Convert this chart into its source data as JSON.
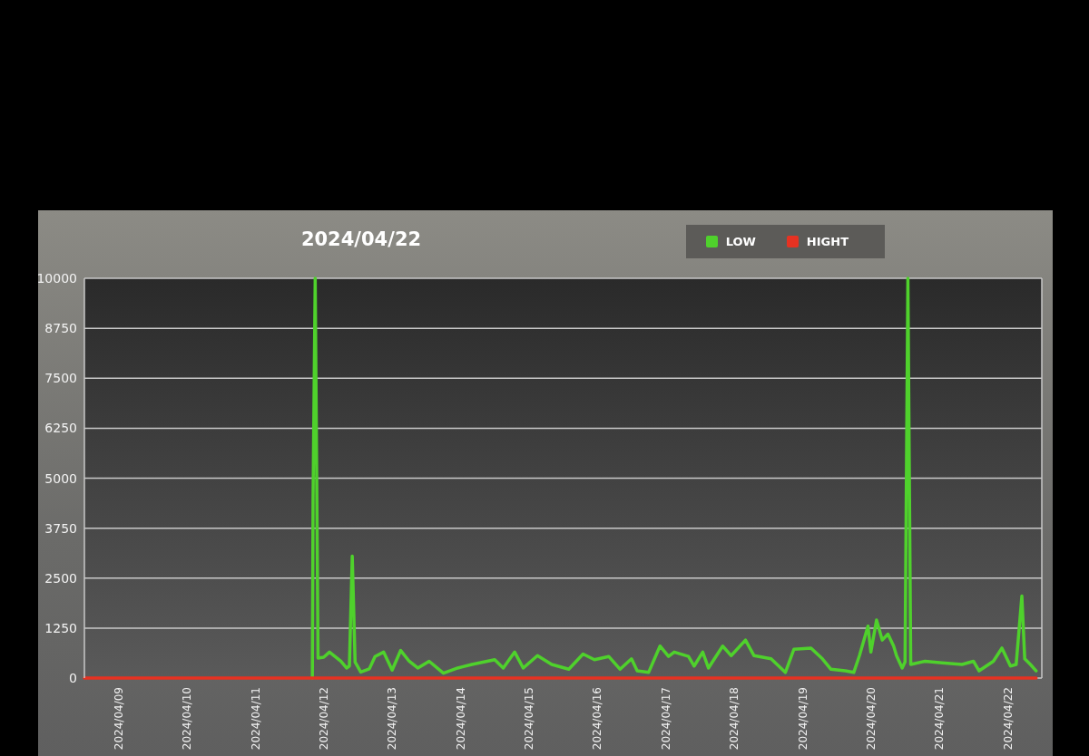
{
  "chart_data": {
    "type": "line",
    "title": "2024/04/22",
    "xlim": [
      "2024-04-08T12:00",
      "2024-04-22T12:00"
    ],
    "xticks": [
      {
        "value": "2024-04-09",
        "label": "2024/04/09"
      },
      {
        "value": "2024-04-10",
        "label": "2024/04/10"
      },
      {
        "value": "2024-04-11",
        "label": "2024/04/11"
      },
      {
        "value": "2024-04-12",
        "label": "2024/04/12"
      },
      {
        "value": "2024-04-13",
        "label": "2024/04/13"
      },
      {
        "value": "2024-04-14",
        "label": "2024/04/14"
      },
      {
        "value": "2024-04-15",
        "label": "2024/04/15"
      },
      {
        "value": "2024-04-16",
        "label": "2024/04/16"
      },
      {
        "value": "2024-04-17",
        "label": "2024/04/17"
      },
      {
        "value": "2024-04-18",
        "label": "2024/04/18"
      },
      {
        "value": "2024-04-19",
        "label": "2024/04/19"
      },
      {
        "value": "2024-04-20",
        "label": "2024/04/20"
      },
      {
        "value": "2024-04-21",
        "label": "2024/04/21"
      },
      {
        "value": "2024-04-22",
        "label": "2024/04/22"
      }
    ],
    "ylim": [
      0,
      10000
    ],
    "yticks": [
      0,
      1250,
      2500,
      3750,
      5000,
      6250,
      7500,
      8750,
      10000
    ],
    "grid": "y",
    "legend": "top right",
    "series": [
      {
        "name": "LOW",
        "color": "#4fd12c",
        "x": [
          "2024-04-11T20:00",
          "2024-04-11T20:15",
          "2024-04-11T21:00",
          "2024-04-11T22:00",
          "2024-04-12T00:00",
          "2024-04-12T02:00",
          "2024-04-12T06:00",
          "2024-04-12T08:00",
          "2024-04-12T09:00",
          "2024-04-12T10:00",
          "2024-04-12T11:00",
          "2024-04-12T13:00",
          "2024-04-12T16:00",
          "2024-04-12T18:00",
          "2024-04-12T21:00",
          "2024-04-13T00:00",
          "2024-04-13T03:00",
          "2024-04-13T06:00",
          "2024-04-13T09:00",
          "2024-04-13T13:00",
          "2024-04-13T18:00",
          "2024-04-13T23:00",
          "2024-04-14T04:00",
          "2024-04-14T12:00",
          "2024-04-14T15:00",
          "2024-04-14T19:00",
          "2024-04-14T22:00",
          "2024-04-15T03:00",
          "2024-04-15T08:00",
          "2024-04-15T14:00",
          "2024-04-15T19:00",
          "2024-04-15T23:00",
          "2024-04-16T04:00",
          "2024-04-16T08:00",
          "2024-04-16T12:00",
          "2024-04-16T14:00",
          "2024-04-16T18:00",
          "2024-04-16T22:00",
          "2024-04-17T01:00",
          "2024-04-17T03:00",
          "2024-04-17T08:00",
          "2024-04-17T10:00",
          "2024-04-17T13:00",
          "2024-04-17T15:00",
          "2024-04-17T20:00",
          "2024-04-17T23:00",
          "2024-04-18T04:00",
          "2024-04-18T07:00",
          "2024-04-18T13:00",
          "2024-04-18T18:00",
          "2024-04-18T21:00",
          "2024-04-19T03:00",
          "2024-04-19T07:00",
          "2024-04-19T10:00",
          "2024-04-19T15:00",
          "2024-04-19T18:00",
          "2024-04-19T20:00",
          "2024-04-19T23:00",
          "2024-04-20T00:00",
          "2024-04-20T02:00",
          "2024-04-20T04:00",
          "2024-04-20T06:00",
          "2024-04-20T08:00",
          "2024-04-20T09:00",
          "2024-04-20T11:00",
          "2024-04-20T12:00",
          "2024-04-20T13:00",
          "2024-04-20T14:00",
          "2024-04-20T19:00",
          "2024-04-21T01:00",
          "2024-04-21T08:00",
          "2024-04-21T12:00",
          "2024-04-21T14:00",
          "2024-04-21T19:00",
          "2024-04-21T22:00",
          "2024-04-22T01:00",
          "2024-04-22T03:00",
          "2024-04-22T05:00",
          "2024-04-22T06:00",
          "2024-04-22T08:00",
          "2024-04-22T10:00"
        ],
        "values": [
          0,
          4500,
          10000,
          500,
          520,
          650,
          420,
          250,
          300,
          3050,
          400,
          150,
          230,
          540,
          650,
          200,
          690,
          420,
          250,
          420,
          120,
          250,
          340,
          460,
          250,
          650,
          250,
          560,
          340,
          220,
          600,
          460,
          540,
          220,
          480,
          180,
          140,
          800,
          540,
          650,
          540,
          300,
          650,
          250,
          800,
          560,
          950,
          560,
          480,
          140,
          720,
          750,
          480,
          220,
          180,
          140,
          560,
          1300,
          650,
          1450,
          950,
          1100,
          800,
          560,
          250,
          400,
          10000,
          340,
          420,
          380,
          340,
          420,
          180,
          420,
          750,
          300,
          340,
          2050,
          480,
          340,
          180
        ]
      },
      {
        "name": "HIGHT",
        "color": "#e63222",
        "x": [
          "2024-04-08T12:00",
          "2024-04-22T10:00"
        ],
        "values": [
          0,
          0
        ]
      }
    ]
  }
}
